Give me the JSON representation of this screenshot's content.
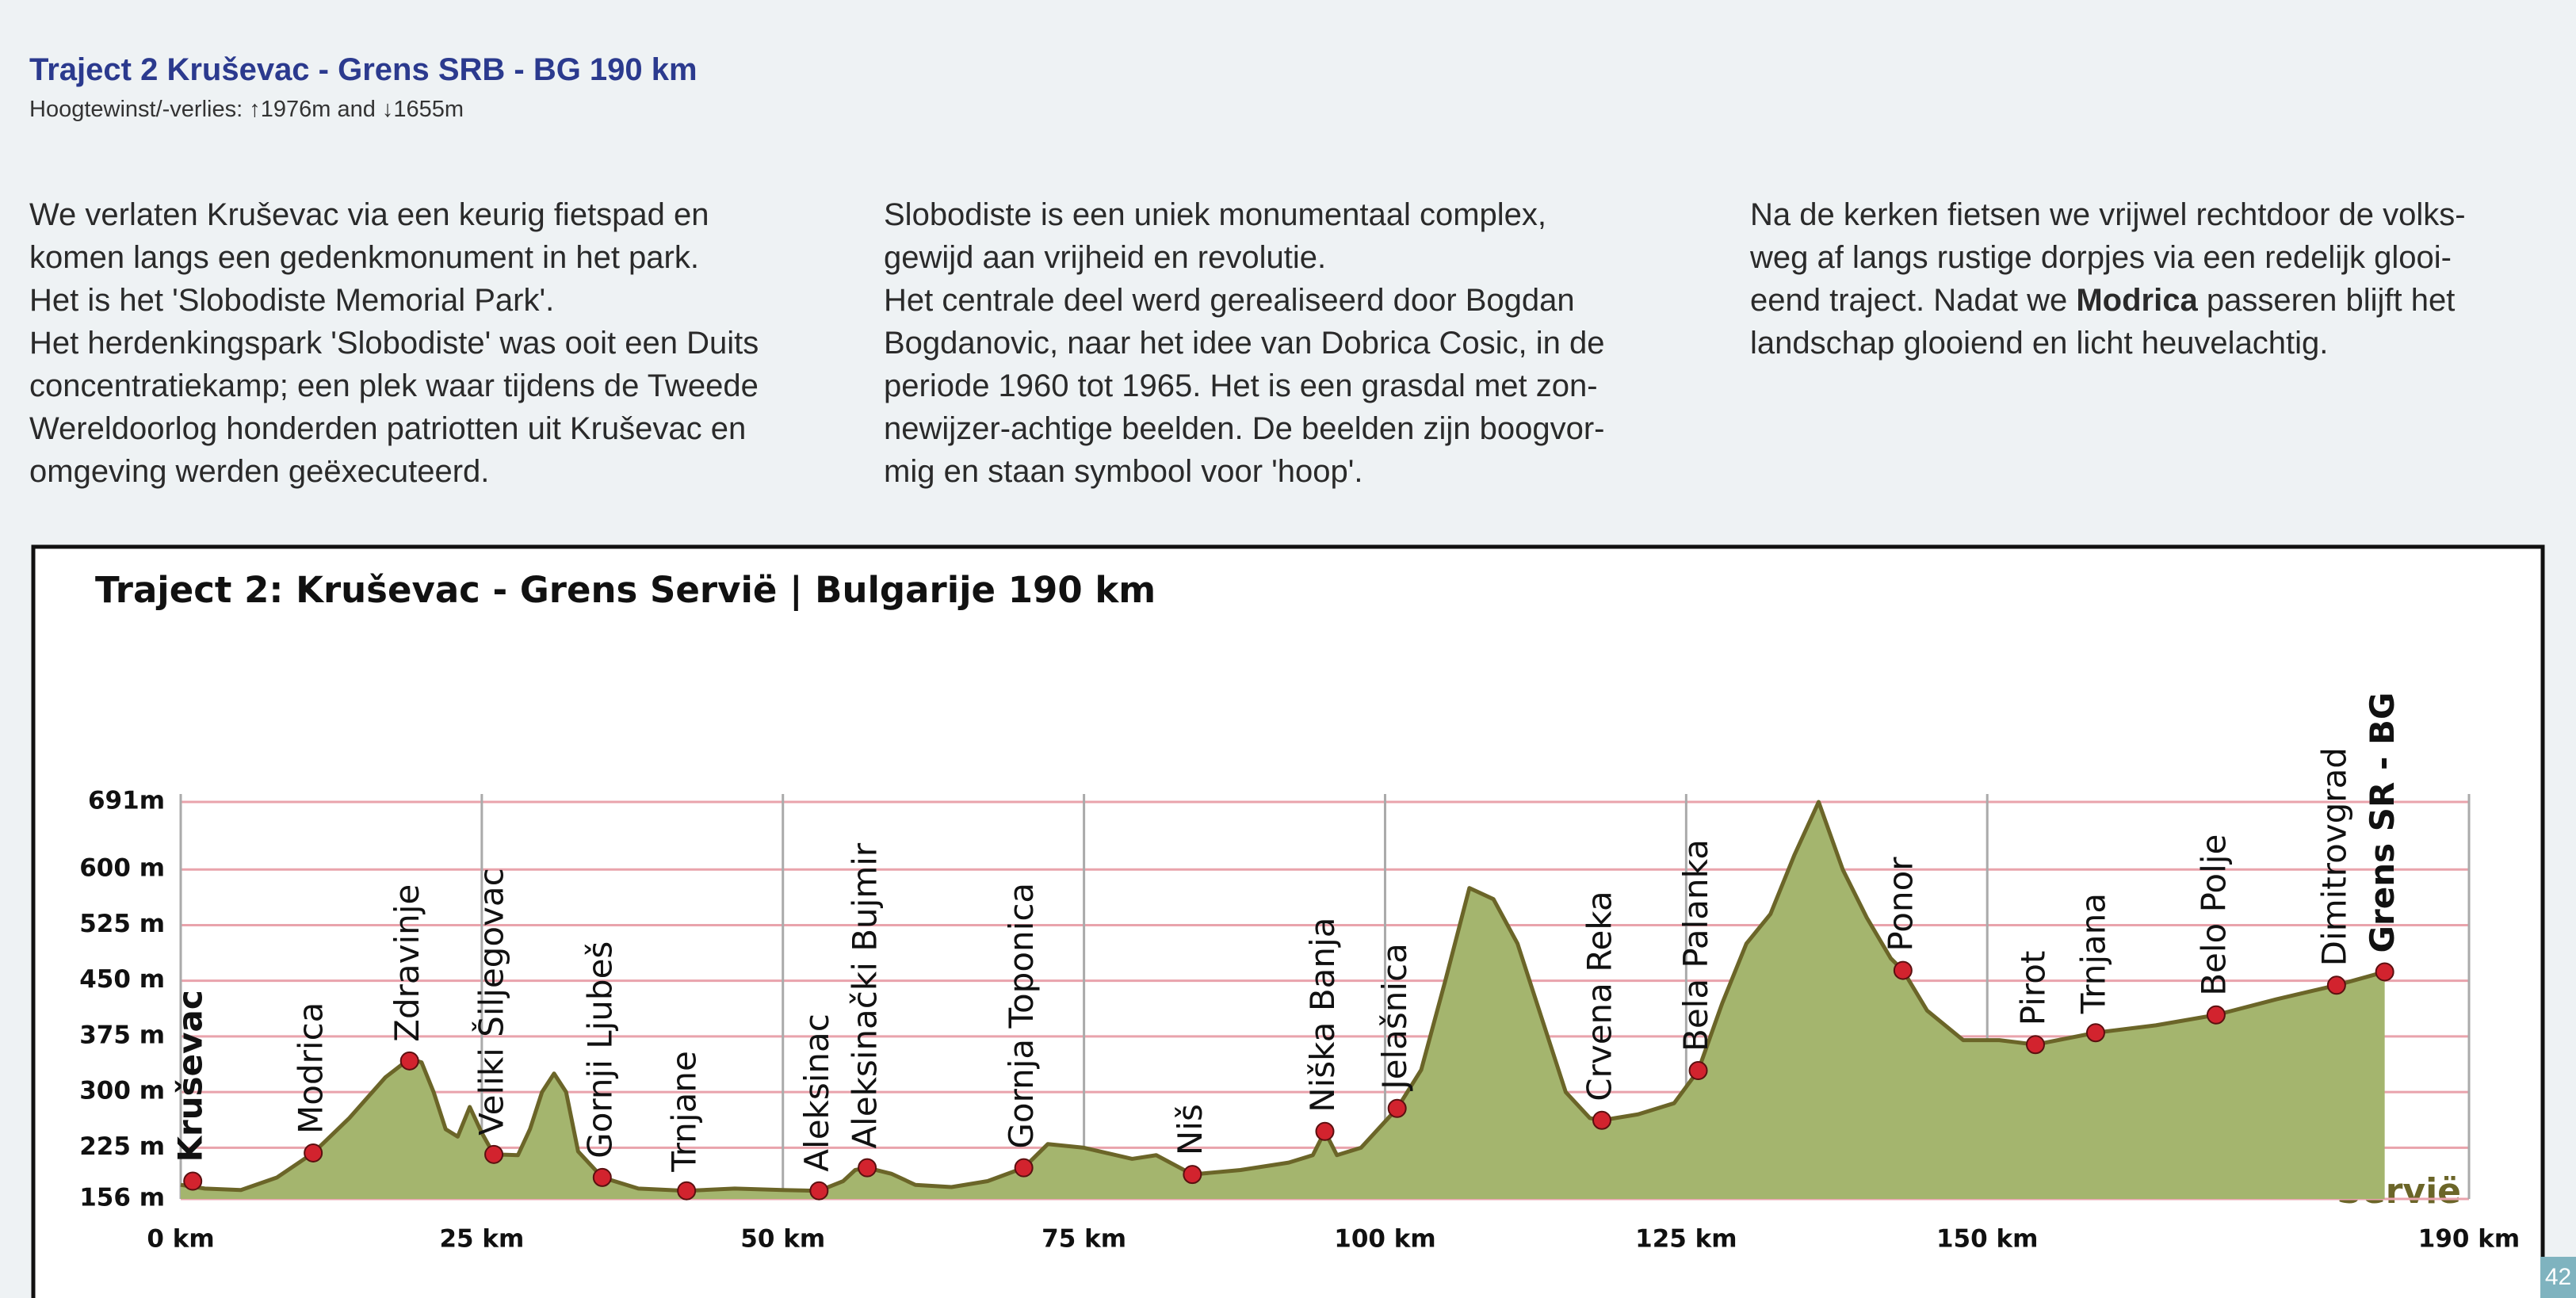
{
  "header": {
    "title": "Traject 2  Kruševac - Grens SRB - BG 190 km",
    "subtitle": "Hoogtewinst/-verlies: ↑1976m and ↓1655m"
  },
  "columns": [
    {
      "lines": [
        "We verlaten Kruševac via een keurig fietspad en",
        "komen langs een gedenkmonument in het park.",
        "Het is het 'Slobodiste Memorial Park'.",
        "Het herdenkingspark 'Slobodiste' was ooit een Duits",
        "concentratiekamp; een plek waar tijdens de Tweede",
        "Wereldoorlog honderden patriotten uit Kruševac en",
        "omgeving werden geëxecuteerd."
      ]
    },
    {
      "lines": [
        "Slobodiste is een uniek monumentaal complex,",
        "gewijd aan vrijheid en revolutie.",
        "Het centrale deel werd gerealiseerd door Bogdan",
        "Bogdanovic, naar het idee van Dobrica Cosic, in de",
        "periode 1960 tot 1965. Het is een grasdal met zon-",
        "newijzer-achtige beelden. De beelden zijn boogvor-",
        "mig en staan symbool voor 'hoop'."
      ]
    },
    {
      "lines": [
        "Na de kerken fietsen we vrijwel rechtdoor de volks-",
        "weg af langs rustige dorpjes via een redelijk glooi-",
        [
          "eend traject. Nadat we ",
          "Modrica",
          " passeren blijft het"
        ],
        "landschap glooiend en licht heuvelachtig."
      ]
    }
  ],
  "page_number": "42",
  "chart_data": {
    "type": "area",
    "title": "Traject 2: Kruševac - Grens Servië | Bulgarije 190 km",
    "annotation": "Servië",
    "color": "#a4b56e",
    "line_color": "#6b6528",
    "marker_color": "#d2232e",
    "xlim": [
      0,
      190
    ],
    "ylim": [
      156,
      691
    ],
    "xticks": [
      {
        "value": 0,
        "label": "0 km"
      },
      {
        "value": 25,
        "label": "25 km"
      },
      {
        "value": 50,
        "label": "50 km"
      },
      {
        "value": 75,
        "label": "75 km"
      },
      {
        "value": 100,
        "label": "100 km"
      },
      {
        "value": 125,
        "label": "125 km"
      },
      {
        "value": 150,
        "label": "150 km"
      },
      {
        "value": 190,
        "label": "190 km"
      }
    ],
    "yticks": [
      {
        "value": 156,
        "label": "156 m"
      },
      {
        "value": 225,
        "label": "225 m"
      },
      {
        "value": 300,
        "label": "300 m"
      },
      {
        "value": 375,
        "label": "375 m"
      },
      {
        "value": 450,
        "label": "450 m"
      },
      {
        "value": 525,
        "label": "525 m"
      },
      {
        "value": 600,
        "label": "600 m"
      },
      {
        "value": 691,
        "label": "691m"
      }
    ],
    "profile": {
      "x": [
        0,
        2,
        5,
        8,
        11,
        14,
        17,
        19,
        20,
        21,
        22,
        23,
        24,
        25,
        26,
        28,
        29,
        30,
        31,
        32,
        33,
        35,
        38,
        42,
        46,
        50,
        53,
        55,
        56,
        57,
        59,
        61,
        64,
        67,
        70,
        72,
        75,
        79,
        81,
        84,
        88,
        92,
        94,
        95,
        96,
        98,
        101,
        103,
        105,
        107,
        109,
        111,
        113,
        115,
        117,
        118,
        121,
        124,
        126,
        128,
        130,
        132,
        134,
        136,
        138,
        140,
        142,
        143,
        145,
        148,
        151,
        154,
        159,
        164,
        169,
        174,
        179,
        183
      ],
      "values": [
        175,
        170,
        168,
        185,
        218,
        265,
        320,
        345,
        340,
        300,
        250,
        240,
        280,
        245,
        216,
        215,
        250,
        300,
        325,
        300,
        220,
        185,
        170,
        167,
        170,
        168,
        167,
        180,
        195,
        198,
        190,
        175,
        172,
        180,
        198,
        230,
        225,
        210,
        215,
        189,
        195,
        205,
        215,
        247,
        215,
        225,
        278,
        330,
        450,
        575,
        560,
        500,
        400,
        300,
        265,
        262,
        270,
        285,
        329,
        420,
        500,
        540,
        620,
        691,
        600,
        535,
        480,
        464,
        410,
        370,
        370,
        364,
        380,
        390,
        404,
        425,
        444,
        462
      ]
    },
    "points": [
      {
        "name": "Kruševac",
        "x": 1,
        "value": 180
      },
      {
        "name": "Modrica",
        "x": 11,
        "value": 218
      },
      {
        "name": "Zdravinje",
        "x": 19,
        "value": 342
      },
      {
        "name": "Veliki Šiljegovac",
        "x": 26,
        "value": 216
      },
      {
        "name": "Gornji Ljubeš",
        "x": 35,
        "value": 185
      },
      {
        "name": "Trnjane",
        "x": 42,
        "value": 167
      },
      {
        "name": "Aleksinac",
        "x": 53,
        "value": 167
      },
      {
        "name": "Aleksinački Bujmir",
        "x": 57,
        "value": 198
      },
      {
        "name": "Gornja Toponica",
        "x": 70,
        "value": 198
      },
      {
        "name": "Niš",
        "x": 84,
        "value": 189
      },
      {
        "name": "Niška Banja",
        "x": 95,
        "value": 247
      },
      {
        "name": "Jelašnica",
        "x": 101,
        "value": 278
      },
      {
        "name": "Crvena Reka",
        "x": 118,
        "value": 262
      },
      {
        "name": "Bela Palanka",
        "x": 126,
        "value": 329
      },
      {
        "name": "Ponor",
        "x": 143,
        "value": 464
      },
      {
        "name": "Pirot",
        "x": 154,
        "value": 364
      },
      {
        "name": "Trnjana",
        "x": 159,
        "value": 380
      },
      {
        "name": "Belo Polje",
        "x": 169,
        "value": 404
      },
      {
        "name": "Dimitrovgrad",
        "x": 179,
        "value": 444
      },
      {
        "name": "Grens SR - BG",
        "x": 183,
        "value": 462
      }
    ]
  }
}
